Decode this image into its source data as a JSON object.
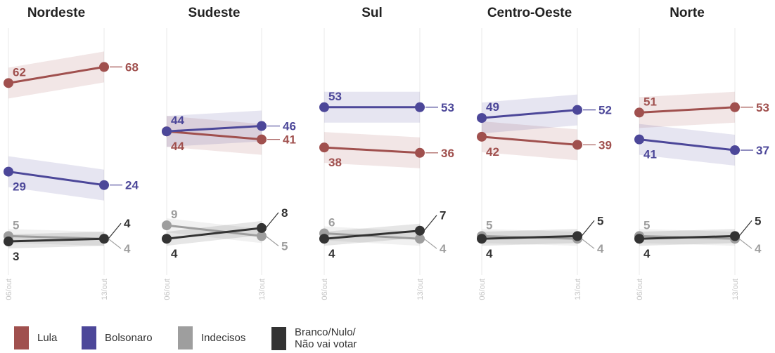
{
  "chart_data": {
    "type": "line",
    "x": [
      "06/out",
      "13/out"
    ],
    "colors": {
      "Lula": "#a0504e",
      "Bolsonaro": "#4c4799",
      "Indecisos": "#9e9e9e",
      "Branco/Nulo/Não vai votar": "#333333"
    },
    "legend": {
      "position": "bottom",
      "items": [
        {
          "name": "Lula",
          "label": "Lula",
          "color": "#a0504e"
        },
        {
          "name": "Bolsonaro",
          "label": "Bolsonaro",
          "color": "#4c4799"
        },
        {
          "name": "Indecisos",
          "label": "Indecisos",
          "color": "#9e9e9e"
        },
        {
          "name": "Branco/Nulo/Não vai votar",
          "label_line1": "Branco/Nulo/",
          "label_line2": "Não vai votar",
          "color": "#333333"
        }
      ]
    },
    "panels": [
      {
        "title": "Nordeste",
        "series": [
          {
            "name": "Lula",
            "values": [
              62,
              68
            ]
          },
          {
            "name": "Bolsonaro",
            "values": [
              29,
              24
            ]
          },
          {
            "name": "Indecisos",
            "values": [
              5,
              4
            ]
          },
          {
            "name": "Branco/Nulo/Não vai votar",
            "values": [
              3,
              4
            ]
          }
        ]
      },
      {
        "title": "Sudeste",
        "series": [
          {
            "name": "Lula",
            "values": [
              44,
              41
            ]
          },
          {
            "name": "Bolsonaro",
            "values": [
              44,
              46
            ]
          },
          {
            "name": "Indecisos",
            "values": [
              9,
              5
            ]
          },
          {
            "name": "Branco/Nulo/Não vai votar",
            "values": [
              4,
              8
            ]
          }
        ]
      },
      {
        "title": "Sul",
        "series": [
          {
            "name": "Lula",
            "values": [
              38,
              36
            ]
          },
          {
            "name": "Bolsonaro",
            "values": [
              53,
              53
            ]
          },
          {
            "name": "Indecisos",
            "values": [
              6,
              4
            ]
          },
          {
            "name": "Branco/Nulo/Não vai votar",
            "values": [
              4,
              7
            ]
          }
        ]
      },
      {
        "title": "Centro-Oeste",
        "series": [
          {
            "name": "Lula",
            "values": [
              42,
              39
            ]
          },
          {
            "name": "Bolsonaro",
            "values": [
              49,
              52
            ]
          },
          {
            "name": "Indecisos",
            "values": [
              5,
              4
            ]
          },
          {
            "name": "Branco/Nulo/Não vai votar",
            "values": [
              4,
              5
            ]
          }
        ]
      },
      {
        "title": "Norte",
        "series": [
          {
            "name": "Lula",
            "values": [
              51,
              53
            ]
          },
          {
            "name": "Bolsonaro",
            "values": [
              41,
              37
            ]
          },
          {
            "name": "Indecisos",
            "values": [
              5,
              4
            ]
          },
          {
            "name": "Branco/Nulo/Não vai votar",
            "values": [
              4,
              5
            ]
          }
        ]
      }
    ]
  }
}
